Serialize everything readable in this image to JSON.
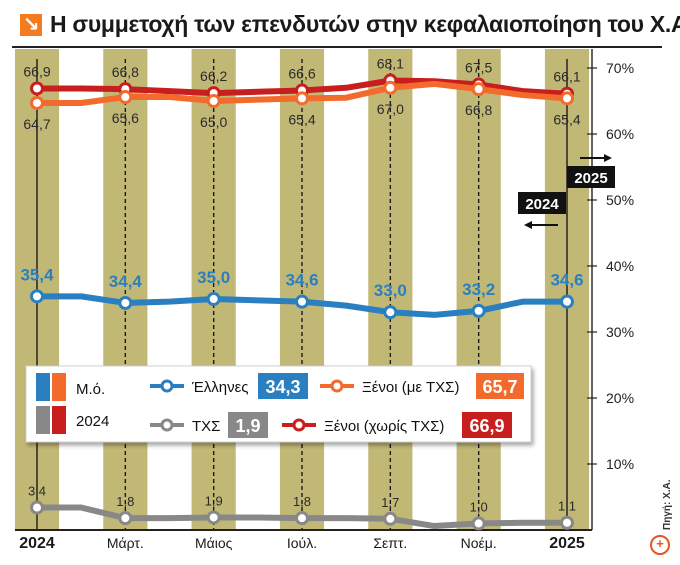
{
  "title": "Η συμμετοχή των επενδυτών στην κεφαλαιοποίηση του Χ.Α.",
  "source": "Πηγή: Χ.Α.",
  "colors": {
    "hellenes": "#2a7fc0",
    "xenoi_tks": "#f26a2c",
    "tks": "#888888",
    "xenoi_no_tks": "#c81e1e",
    "band": "#c2b876",
    "band_text": "#2a2a2a"
  },
  "legend": {
    "mo_label": "Μ.ό.",
    "year_label": "2024",
    "items": [
      {
        "name": "Έλληνες",
        "value": "34,3",
        "color": "#2a7fc0"
      },
      {
        "name": "Ξένοι (με ΤΧΣ)",
        "value": "65,7",
        "color": "#f26a2c"
      },
      {
        "name": "ΤΧΣ",
        "value": "1,9",
        "color": "#888888"
      },
      {
        "name": "Ξένοι (χωρίς ΤΧΣ)",
        "value": "66,9",
        "color": "#c81e1e"
      }
    ]
  },
  "markers": {
    "label_2024": "2024",
    "label_2025": "2025"
  },
  "chart_data": {
    "type": "line",
    "ylim": [
      0,
      72
    ],
    "yticks": [
      10,
      20,
      30,
      40,
      50,
      60,
      70
    ],
    "ytick_labels": [
      "10%",
      "20%",
      "30%",
      "40%",
      "50%",
      "60%",
      "70%"
    ],
    "xtick_labels": [
      "2024",
      "Μάρτ.",
      "Μάιος",
      "Ιούλ.",
      "Σεπτ.",
      "Νοέμ.",
      "2025"
    ],
    "xtick_positions": [
      0,
      2,
      4,
      6,
      8,
      10,
      12
    ],
    "x_count": 13,
    "series": [
      {
        "name": "Ξένοι (χωρίς ΤΧΣ)",
        "color": "#c81e1e",
        "values": [
          66.9,
          66.9,
          66.8,
          66.5,
          66.2,
          66.4,
          66.6,
          67.0,
          68.1,
          68.0,
          67.5,
          66.5,
          66.1
        ],
        "labels": [
          "66,9",
          null,
          "66,8",
          null,
          "66,2",
          null,
          "66,6",
          null,
          "68,1",
          null,
          "67,5",
          null,
          "66,1"
        ],
        "label_side": "above"
      },
      {
        "name": "Ξένοι (με ΤΧΣ)",
        "color": "#f26a2c",
        "values": [
          64.7,
          64.7,
          65.6,
          65.6,
          65.0,
          65.2,
          65.4,
          65.5,
          67.0,
          67.6,
          66.8,
          65.9,
          65.4
        ],
        "labels": [
          "64,7",
          null,
          "65,6",
          null,
          "65,0",
          null,
          "65,4",
          null,
          "67,0",
          null,
          "66,8",
          null,
          "65,4"
        ],
        "label_side": "below"
      },
      {
        "name": "Έλληνες",
        "color": "#2a7fc0",
        "values": [
          35.4,
          35.4,
          34.4,
          34.6,
          35.0,
          34.8,
          34.6,
          34.0,
          33.0,
          32.6,
          33.2,
          34.6,
          34.6
        ],
        "labels": [
          "35,4",
          null,
          "34,4",
          null,
          "35,0",
          null,
          "34,6",
          null,
          "33,0",
          null,
          "33,2",
          null,
          "34,6"
        ],
        "label_side": "above"
      },
      {
        "name": "ΤΧΣ",
        "color": "#888888",
        "values": [
          3.4,
          3.4,
          1.8,
          1.8,
          1.9,
          1.9,
          1.8,
          1.8,
          1.7,
          0.6,
          1.0,
          1.1,
          1.1
        ],
        "labels": [
          "3,4",
          null,
          "1,8",
          null,
          "1,9",
          null,
          "1,8",
          null,
          "1,7",
          null,
          "1,0",
          null,
          "1,1"
        ],
        "label_side": "above"
      }
    ]
  }
}
